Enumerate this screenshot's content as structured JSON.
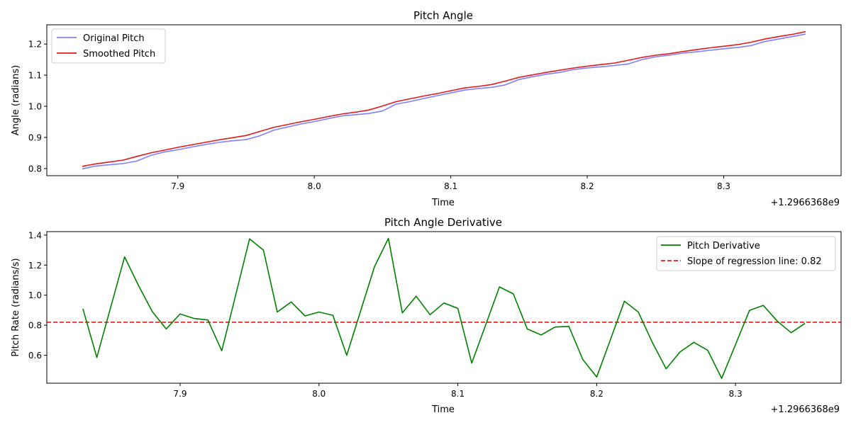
{
  "chart_data": [
    {
      "type": "line",
      "title": "Pitch Angle",
      "xlabel": "Time",
      "ylabel": "Angle (radians)",
      "x_offset_label": "+1.2966368e9",
      "xlim": [
        7.804,
        8.386
      ],
      "ylim": [
        0.777,
        1.262
      ],
      "xticks": [
        7.9,
        8.0,
        8.1,
        8.2,
        8.3
      ],
      "xtick_labels": [
        "7.9",
        "8.0",
        "8.1",
        "8.2",
        "8.3"
      ],
      "yticks": [
        0.8,
        0.9,
        1.0,
        1.1,
        1.2
      ],
      "ytick_labels": [
        "0.8",
        "0.9",
        "1.0",
        "1.1",
        "1.2"
      ],
      "legend_position": "upper-left",
      "x": [
        7.83,
        7.84,
        7.85,
        7.86,
        7.87,
        7.88,
        7.89,
        7.9,
        7.91,
        7.92,
        7.93,
        7.94,
        7.95,
        7.96,
        7.97,
        7.98,
        7.99,
        8.0,
        8.01,
        8.02,
        8.03,
        8.04,
        8.05,
        8.06,
        8.07,
        8.08,
        8.09,
        8.1,
        8.11,
        8.12,
        8.13,
        8.14,
        8.15,
        8.16,
        8.17,
        8.18,
        8.19,
        8.2,
        8.21,
        8.22,
        8.23,
        8.24,
        8.25,
        8.26,
        8.27,
        8.28,
        8.29,
        8.3,
        8.31,
        8.32,
        8.33,
        8.34,
        8.35,
        8.36
      ],
      "series": [
        {
          "name": "Original Pitch",
          "color": "#8080ff",
          "values": [
            0.799,
            0.808,
            0.812,
            0.816,
            0.824,
            0.842,
            0.853,
            0.86,
            0.869,
            0.877,
            0.884,
            0.889,
            0.893,
            0.905,
            0.923,
            0.933,
            0.943,
            0.951,
            0.96,
            0.969,
            0.973,
            0.977,
            0.985,
            1.007,
            1.015,
            1.025,
            1.034,
            1.043,
            1.052,
            1.057,
            1.061,
            1.069,
            1.086,
            1.095,
            1.103,
            1.109,
            1.118,
            1.123,
            1.127,
            1.131,
            1.136,
            1.15,
            1.159,
            1.164,
            1.171,
            1.175,
            1.18,
            1.185,
            1.189,
            1.195,
            1.208,
            1.216,
            1.224,
            1.232
          ]
        },
        {
          "name": "Smoothed Pitch",
          "color": "#e31a1c",
          "values": [
            0.807,
            0.815,
            0.821,
            0.827,
            0.839,
            0.85,
            0.859,
            0.868,
            0.876,
            0.884,
            0.892,
            0.899,
            0.906,
            0.919,
            0.932,
            0.941,
            0.95,
            0.958,
            0.967,
            0.975,
            0.981,
            0.988,
            1.001,
            1.015,
            1.024,
            1.033,
            1.041,
            1.05,
            1.059,
            1.064,
            1.07,
            1.081,
            1.093,
            1.101,
            1.109,
            1.116,
            1.123,
            1.129,
            1.134,
            1.139,
            1.148,
            1.157,
            1.164,
            1.169,
            1.176,
            1.182,
            1.188,
            1.193,
            1.198,
            1.206,
            1.216,
            1.224,
            1.231,
            1.24
          ]
        }
      ]
    },
    {
      "type": "line",
      "title": "Pitch Angle Derivative",
      "xlabel": "Time",
      "ylabel": "Pitch Rate (radians/s)",
      "x_offset_label": "+1.2966368e9",
      "xlim": [
        7.804,
        8.376
      ],
      "ylim": [
        0.414,
        1.423
      ],
      "xticks": [
        7.9,
        8.0,
        8.1,
        8.2,
        8.3
      ],
      "xtick_labels": [
        "7.9",
        "8.0",
        "8.1",
        "8.2",
        "8.3"
      ],
      "yticks": [
        0.6,
        0.8,
        1.0,
        1.2,
        1.4
      ],
      "ytick_labels": [
        "0.6",
        "0.8",
        "1.0",
        "1.2",
        "1.4"
      ],
      "legend_position": "upper-right",
      "x": [
        7.83,
        7.84,
        7.85,
        7.86,
        7.87,
        7.88,
        7.89,
        7.9,
        7.91,
        7.92,
        7.93,
        7.94,
        7.95,
        7.96,
        7.97,
        7.98,
        7.99,
        8.0,
        8.01,
        8.02,
        8.03,
        8.04,
        8.05,
        8.06,
        8.07,
        8.08,
        8.09,
        8.1,
        8.11,
        8.12,
        8.13,
        8.14,
        8.15,
        8.16,
        8.17,
        8.18,
        8.19,
        8.2,
        8.21,
        8.22,
        8.23,
        8.24,
        8.25,
        8.26,
        8.27,
        8.28,
        8.29,
        8.3,
        8.31,
        8.32,
        8.33,
        8.34,
        8.35
      ],
      "series": [
        {
          "name": "Pitch Derivative",
          "color": "#008000",
          "values": [
            0.91,
            0.585,
            0.92,
            1.255,
            1.065,
            0.89,
            0.775,
            0.875,
            0.845,
            0.835,
            0.63,
            1.0,
            1.375,
            1.3,
            0.888,
            0.955,
            0.862,
            0.888,
            0.866,
            0.6,
            0.895,
            1.19,
            1.378,
            0.882,
            0.993,
            0.87,
            0.948,
            0.912,
            0.548,
            0.8,
            1.055,
            1.008,
            0.775,
            0.735,
            0.788,
            0.792,
            0.572,
            0.455,
            0.707,
            0.96,
            0.888,
            0.687,
            0.51,
            0.622,
            0.686,
            0.633,
            0.446,
            0.672,
            0.898,
            0.932,
            0.828,
            0.75,
            0.812
          ]
        }
      ],
      "reference_line": {
        "name": "Slope of regression line: 0.82",
        "value": 0.82,
        "color": "#e31a1c",
        "style": "dashed"
      }
    }
  ]
}
